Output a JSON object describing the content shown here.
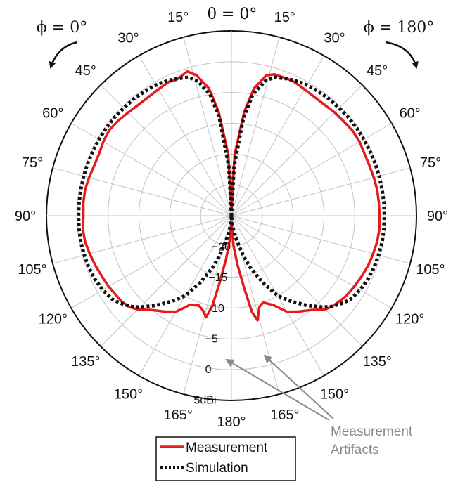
{
  "chart_data": {
    "type": "polar",
    "theta_label": "θ = 0°",
    "phi_left": "ϕ = 0°",
    "phi_right": "ϕ = 180°",
    "angle_ticks": [
      0,
      15,
      30,
      45,
      60,
      75,
      90,
      105,
      120,
      135,
      150,
      165,
      180
    ],
    "angle_unit": "°",
    "radial_ticks": [
      -20,
      -15,
      -10,
      -5,
      0,
      5
    ],
    "radial_tick_labels": [
      "−20",
      "−15",
      "−10",
      "−5",
      "0",
      "5dBi"
    ],
    "rlim": [
      -25,
      5
    ],
    "grid": true,
    "legend_position": "bottom",
    "annotation": "Measurement\nArtifacts",
    "series": [
      {
        "name": "Measurement",
        "color": "#e31b1b",
        "line_style": "solid",
        "theta": [
          0,
          3,
          7,
          10,
          14,
          17,
          22,
          25,
          28,
          30,
          35,
          40,
          45,
          50,
          55,
          60,
          65,
          70,
          75,
          80,
          85,
          90,
          95,
          100,
          105,
          110,
          115,
          120,
          125,
          128,
          132,
          135,
          140,
          145,
          150,
          155,
          160,
          163,
          166,
          168,
          170,
          173,
          176,
          180
        ],
        "left_r_db": [
          -24,
          -15,
          -8,
          -4,
          -1.5,
          -0.5,
          -1.2,
          -1.0,
          -1.2,
          -1.3,
          -1.5,
          -1.5,
          -1.3,
          -1.0,
          -0.8,
          -1.0,
          -1.3,
          -1.3,
          -1.1,
          -0.9,
          -0.9,
          -1.0,
          -0.8,
          -0.9,
          -1.2,
          -1.5,
          -1.8,
          -2.0,
          -2.3,
          -2.4,
          -2.8,
          -3.5,
          -5,
          -6,
          -7,
          -9,
          -9.5,
          -9,
          -8,
          -10,
          -14,
          -18,
          -21,
          -24
        ],
        "right_r_db": [
          -24,
          -15,
          -8,
          -4,
          -1.5,
          -1.0,
          -1.0,
          -1.0,
          -1.2,
          -1.3,
          -1.5,
          -1.5,
          -1.3,
          -1.2,
          -1.0,
          -1.0,
          -1.2,
          -1.2,
          -1.1,
          -1.0,
          -1.0,
          -1.0,
          -0.9,
          -1.0,
          -1.2,
          -1.4,
          -1.7,
          -2.0,
          -2.3,
          -2.6,
          -3.0,
          -3.5,
          -5,
          -6,
          -7,
          -9,
          -10,
          -9.5,
          -7.5,
          -9,
          -13,
          -17,
          -20,
          -24
        ]
      },
      {
        "name": "Simulation",
        "color": "#111111",
        "line_style": "dotted",
        "theta": [
          0,
          3,
          7,
          10,
          14,
          17,
          22,
          25,
          28,
          30,
          35,
          40,
          45,
          50,
          55,
          60,
          65,
          70,
          75,
          80,
          85,
          90,
          95,
          100,
          105,
          110,
          115,
          120,
          125,
          128,
          132,
          135,
          140,
          145,
          150,
          155,
          160,
          163,
          166,
          168,
          170,
          173,
          176,
          180
        ],
        "left_r_db": [
          -25,
          -17,
          -9,
          -5,
          -2.5,
          -1.5,
          -1.0,
          -0.8,
          -0.6,
          -0.5,
          -0.4,
          -0.3,
          -0.3,
          -0.2,
          -0.2,
          -0.2,
          -0.2,
          -0.2,
          -0.2,
          -0.2,
          -0.2,
          -0.2,
          -0.2,
          -0.2,
          -0.3,
          -0.4,
          -0.6,
          -0.9,
          -1.4,
          -2.0,
          -3.0,
          -4.0,
          -6,
          -8,
          -10,
          -13,
          -16,
          -18,
          -20,
          -21,
          -22,
          -23,
          -24,
          -25
        ],
        "right_r_db": [
          -25,
          -17,
          -9,
          -5,
          -2.5,
          -1.5,
          -1.0,
          -0.8,
          -0.6,
          -0.5,
          -0.4,
          -0.3,
          -0.3,
          -0.2,
          -0.2,
          -0.2,
          -0.2,
          -0.2,
          -0.2,
          -0.2,
          -0.2,
          -0.2,
          -0.2,
          -0.2,
          -0.3,
          -0.4,
          -0.6,
          -0.9,
          -1.4,
          -2.0,
          -3.0,
          -4.0,
          -6,
          -8,
          -10,
          -13,
          -16,
          -18,
          -20,
          -21,
          -22,
          -23,
          -24,
          -25
        ]
      }
    ]
  }
}
